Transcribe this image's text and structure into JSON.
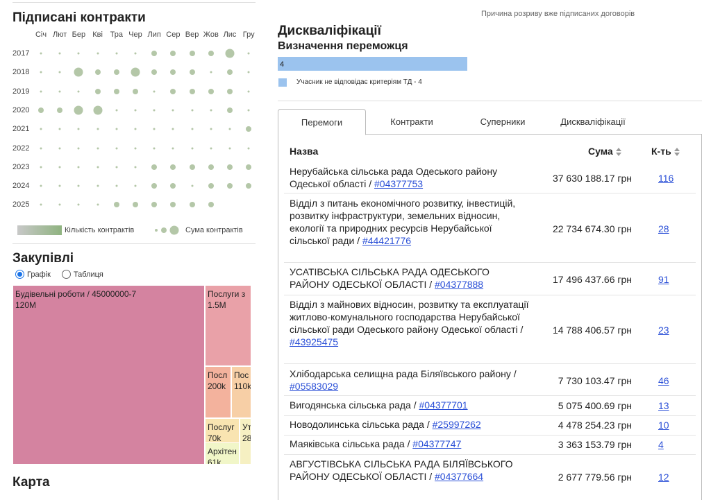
{
  "contracts": {
    "title": "Підписані контракти",
    "months": [
      "Січ",
      "Лют",
      "Бер",
      "Кві",
      "Тра",
      "Чер",
      "Лип",
      "Сер",
      "Вер",
      "Жов",
      "Лис",
      "Гру"
    ],
    "years": [
      "2017",
      "2018",
      "2019",
      "2020",
      "2021",
      "2022",
      "2023",
      "2024",
      "2025"
    ],
    "legend_count": "Кількість контрактів",
    "legend_sum": "Сума контрактів",
    "bubble_sizes": [
      [
        1,
        1,
        1,
        1,
        1,
        1,
        2,
        2,
        2,
        2,
        3,
        1
      ],
      [
        1,
        1,
        3,
        2,
        2,
        3,
        2,
        2,
        2,
        1,
        2,
        1
      ],
      [
        1,
        1,
        1,
        2,
        2,
        2,
        1,
        2,
        2,
        2,
        2,
        1
      ],
      [
        2,
        2,
        3,
        3,
        1,
        1,
        1,
        1,
        1,
        1,
        2,
        1
      ],
      [
        1,
        1,
        1,
        1,
        1,
        1,
        1,
        1,
        1,
        1,
        1,
        2
      ],
      [
        1,
        1,
        1,
        1,
        1,
        1,
        1,
        1,
        1,
        1,
        1,
        1
      ],
      [
        1,
        1,
        1,
        1,
        1,
        1,
        2,
        2,
        2,
        2,
        2,
        2
      ],
      [
        1,
        1,
        1,
        1,
        1,
        1,
        2,
        2,
        1,
        2,
        2,
        2
      ],
      [
        1,
        1,
        1,
        1,
        2,
        2,
        2,
        2,
        2,
        2,
        0,
        0
      ]
    ]
  },
  "procurement": {
    "title": "Закупівлі",
    "view_graph": "Графік",
    "view_table": "Таблиця",
    "treemap": [
      {
        "label": "Будівельні роботи / 45000000-7",
        "value": "120M",
        "color": "#d483a0"
      },
      {
        "label": "Послуги з",
        "value": "1.5M",
        "color": "#e9a1a8"
      },
      {
        "label": "Посл",
        "value": "200k",
        "color": "#f3b29d"
      },
      {
        "label": "Пос",
        "value": "110k",
        "color": "#f7cfa6"
      },
      {
        "label": "Послуг",
        "value": "70k",
        "color": "#f9e4b1"
      },
      {
        "label": "Ут",
        "value": "28",
        "color": "#f6f0c2"
      },
      {
        "label": "Архітен",
        "value": "61k",
        "color": "#f1f6c8"
      }
    ]
  },
  "map": {
    "title": "Карта"
  },
  "disqualifications": {
    "caption": "Причина розриву вже підписаних договорів",
    "title": "Дискваліфікації",
    "subtitle": "Визначення переможця",
    "bar_value": "4",
    "legend": "Учасник не відповідає критеріям ТД - 4",
    "bar_color": "#9bc3ee"
  },
  "tabs": [
    {
      "label": "Перемоги",
      "active": true
    },
    {
      "label": "Контракти",
      "active": false
    },
    {
      "label": "Суперники",
      "active": false
    },
    {
      "label": "Дискваліфікації",
      "active": false
    }
  ],
  "table": {
    "headers": {
      "name": "Назва",
      "sum": "Сума",
      "count": "К-ть"
    },
    "rows": [
      {
        "name": "Нерубайська сільська рада Одеського району Одеської області / ",
        "code": "#04377753",
        "sum": "37 630 188.17 грн",
        "count": "116"
      },
      {
        "name": "Відділ з питань економічного розвитку, інвестицій, розвитку інфраструктури, земельних відносин, екології та природних ресурсів Нерубайської сільської ради / ",
        "code": "#44421776",
        "sum": "22 734 674.30 грн",
        "count": "28"
      },
      {
        "name": "УСАТІВСЬКА СІЛЬСЬКА РАДА ОДЕСЬКОГО РАЙОНУ ОДЕСЬКОЇ ОБЛАСТІ / ",
        "code": "#04377888",
        "sum": "17 496 437.66 грн",
        "count": "91"
      },
      {
        "name": "Відділ з майнових відносин, розвитку та експлуатації житлово-комунального господарства Нерубайської сільської ради Одеського району Одеської області / ",
        "code": "#43925475",
        "sum": "14 788 406.57 грн",
        "count": "23"
      },
      {
        "name": "Хлібодарська селищна рада Біляївського району / ",
        "code": "#05583029",
        "sum": "7 730 103.47 грн",
        "count": "46"
      },
      {
        "name": "Вигодянська сільська рада / ",
        "code": "#04377701",
        "sum": "5 075 400.69 грн",
        "count": "13"
      },
      {
        "name": "Новодолинська сільська рада / ",
        "code": "#25997262",
        "sum": "4 478 254.23 грн",
        "count": "10"
      },
      {
        "name": "Маяківська сільська рада / ",
        "code": "#04377747",
        "sum": "3 363 153.79 грн",
        "count": "4"
      },
      {
        "name": "АВГУСТІВСЬКА СІЛЬСЬКА РАДА БІЛЯЇВСЬКОГО РАЙОНУ ОДЕСЬКОЇ ОБЛАСТІ / ",
        "code": "#04377664",
        "sum": "2 677 779.56 грн",
        "count": "12"
      }
    ]
  }
}
